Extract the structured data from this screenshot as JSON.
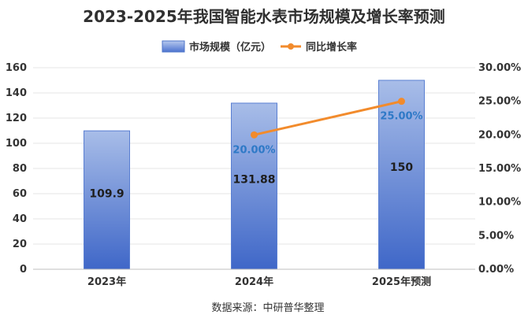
{
  "chart_data": {
    "type": "bar",
    "title": "2023-2025年我国智能水表市场规模及增长率预测",
    "categories": [
      "2023年",
      "2024年",
      "2025年预测"
    ],
    "series": [
      {
        "name": "市场规模（亿元）",
        "type": "bar",
        "axis": "left",
        "values": [
          109.9,
          131.88,
          150
        ],
        "labels": [
          "109.9",
          "131.88",
          "150"
        ],
        "color": "#4a72cf"
      },
      {
        "name": "同比增长率",
        "type": "line",
        "axis": "right",
        "values": [
          null,
          20.0,
          25.0
        ],
        "labels": [
          "",
          "20.00%",
          "25.00%"
        ],
        "color": "#f28b2c"
      }
    ],
    "left_axis": {
      "min": 0,
      "max": 160,
      "ticks": [
        0,
        20,
        40,
        60,
        80,
        100,
        120,
        140,
        160
      ],
      "tick_labels": [
        "0",
        "20",
        "40",
        "60",
        "80",
        "100",
        "120",
        "140",
        "160"
      ]
    },
    "right_axis": {
      "min": 0,
      "max": 30,
      "ticks": [
        0,
        5,
        10,
        15,
        20,
        25,
        30
      ],
      "tick_labels": [
        "0.00%",
        "5.00%",
        "10.00%",
        "15.00%",
        "20.00%",
        "25.00%",
        "30.00%"
      ]
    },
    "grid": true,
    "legend_position": "top",
    "source": "数据来源：中研普华整理"
  }
}
